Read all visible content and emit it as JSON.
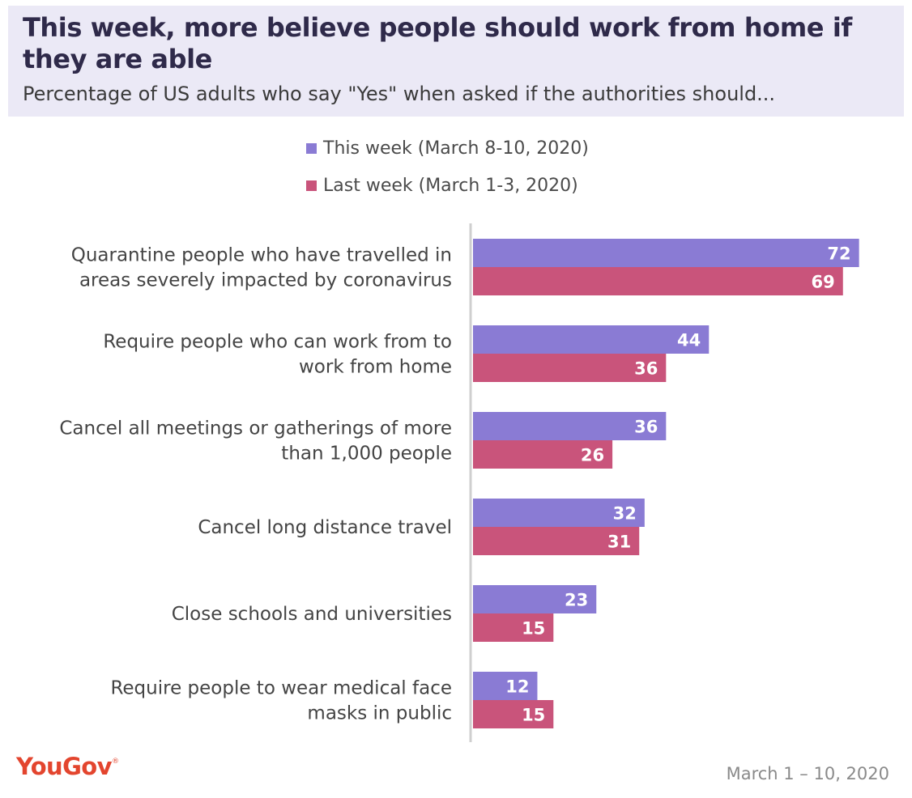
{
  "header": {
    "title": "This week, more believe people should work from home if they are able",
    "subtitle": "Percentage of US adults who say \"Yes\" when asked if the authorities should..."
  },
  "legend": {
    "this_week": "This week (March 8-10, 2020)",
    "last_week": "Last week (March 1-3, 2020)"
  },
  "colors": {
    "this_week": "#8a7bd4",
    "last_week": "#c9547b",
    "header_bg": "#ebe9f6",
    "brand": "#e3452e"
  },
  "chart_data": {
    "type": "bar",
    "orientation": "horizontal",
    "categories": [
      [
        "Quarantine people who have travelled in",
        "areas severely impacted by coronavirus"
      ],
      [
        "Require people who can work from to",
        "work from home"
      ],
      [
        "Cancel all meetings or gatherings of more",
        "than 1,000 people"
      ],
      [
        "Cancel long distance travel"
      ],
      [
        "Close schools and universities"
      ],
      [
        "Require people to wear medical face",
        "masks in public"
      ]
    ],
    "series": [
      {
        "name": "This week (March 8-10, 2020)",
        "values": [
          72,
          44,
          36,
          32,
          23,
          12
        ]
      },
      {
        "name": "Last week (March 1-3, 2020)",
        "values": [
          69,
          36,
          26,
          31,
          15,
          15
        ]
      }
    ],
    "xlim": [
      0,
      80
    ],
    "grid": false,
    "legend_position": "top"
  },
  "footer": {
    "brand": "YouGov",
    "date_range": "March 1 – 10, 2020"
  }
}
